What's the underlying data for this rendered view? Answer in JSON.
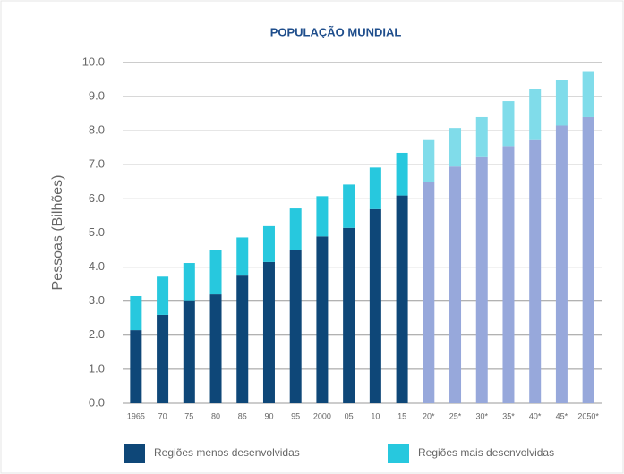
{
  "chart_data": {
    "type": "stacked_bar",
    "title": "POPULAÇÃO MUNDIAL",
    "y_label": "Pessoas (Bilhões)",
    "categories": [
      "1965",
      "70",
      "75",
      "80",
      "85",
      "90",
      "95",
      "2000",
      "05",
      "10",
      "15",
      "20*",
      "25*",
      "30*",
      "35*",
      "40*",
      "45*",
      "2050*"
    ],
    "series": [
      {
        "name": "Regiões menos desenvolvidas",
        "color": "#0e4778",
        "colors": [
          "#0e4778",
          "#0e4778",
          "#0e4778",
          "#0e4778",
          "#0e4778",
          "#0e4778",
          "#0e4778",
          "#0e4778",
          "#0e4778",
          "#0e4778",
          "#0e4778",
          "#97a8db",
          "#97a8db",
          "#97a8db",
          "#97a8db",
          "#97a8db",
          "#97a8db",
          "#97a8db"
        ],
        "values": [
          2.15,
          2.6,
          3.0,
          3.2,
          3.75,
          4.15,
          4.5,
          4.9,
          5.15,
          5.7,
          6.1,
          6.5,
          6.95,
          7.25,
          7.55,
          7.75,
          8.15,
          8.4
        ]
      },
      {
        "name": "Regiões mais desenvolvidas",
        "color": "#27c8de",
        "colors": [
          "#27c8de",
          "#27c8de",
          "#27c8de",
          "#27c8de",
          "#27c8de",
          "#27c8de",
          "#27c8de",
          "#27c8de",
          "#27c8de",
          "#27c8de",
          "#27c8de",
          "#80dcea",
          "#80dcea",
          "#80dcea",
          "#80dcea",
          "#80dcea",
          "#80dcea",
          "#80dcea"
        ],
        "values": [
          1.0,
          1.12,
          1.12,
          1.3,
          1.12,
          1.05,
          1.22,
          1.18,
          1.27,
          1.22,
          1.25,
          1.25,
          1.13,
          1.15,
          1.32,
          1.47,
          1.35,
          1.35
        ]
      }
    ],
    "ylim": [
      0,
      10
    ],
    "yticks": [
      {
        "value": 0,
        "label": "0.0"
      },
      {
        "value": 1,
        "label": "1.0"
      },
      {
        "value": 2,
        "label": "2.0"
      },
      {
        "value": 3,
        "label": "3.0"
      },
      {
        "value": 4,
        "label": "4.0"
      },
      {
        "value": 5,
        "label": "5.0"
      },
      {
        "value": 6,
        "label": "6.0"
      },
      {
        "value": 7,
        "label": "7.0"
      },
      {
        "value": 8,
        "label": "8.0"
      },
      {
        "value": 9,
        "label": "9.0"
      },
      {
        "value": 10,
        "label": "10.0"
      }
    ],
    "grid": true
  }
}
